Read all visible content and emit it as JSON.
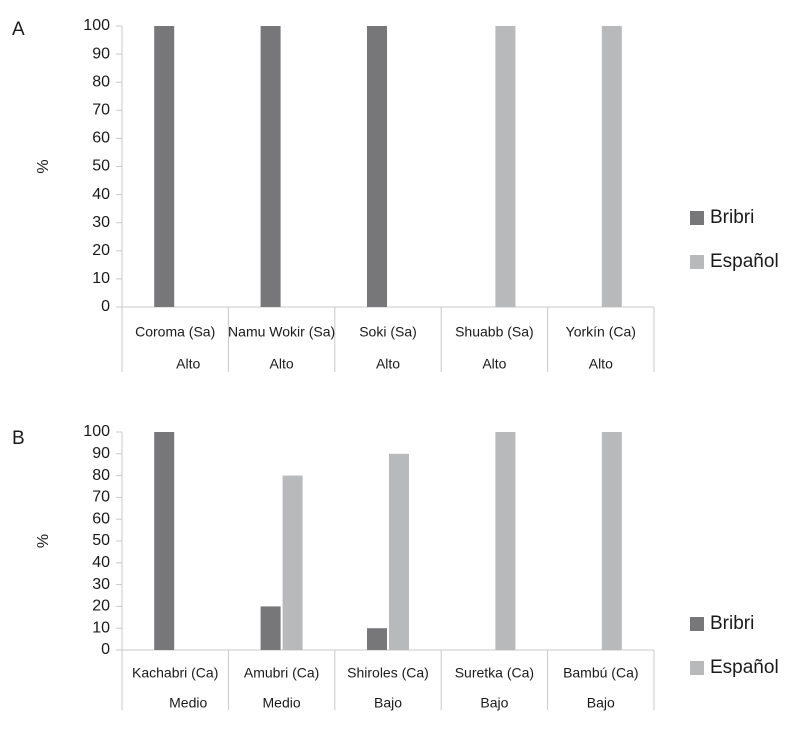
{
  "chart_data": [
    {
      "type": "bar",
      "panel_label": "A",
      "ylabel": "%",
      "ylim": [
        0,
        100
      ],
      "yticks": [
        "0",
        "10",
        "20",
        "30",
        "40",
        "50",
        "60",
        "70",
        "80",
        "90",
        "100"
      ],
      "categories": [
        "Coroma (Sa)",
        "Namu Wokir (Sa)",
        "Soki (Sa)",
        "Shuabb (Sa)",
        "Yorkín (Ca)"
      ],
      "groups": [
        "Alto",
        "Alto",
        "Alto",
        "Alto",
        "Alto"
      ],
      "series": [
        {
          "name": "Bribri",
          "color": "#77777a",
          "values": [
            100,
            100,
            100,
            0,
            0
          ]
        },
        {
          "name": "Español",
          "color": "#b8b9bb",
          "values": [
            0,
            0,
            0,
            100,
            100
          ]
        }
      ],
      "legend": "right"
    },
    {
      "type": "bar",
      "panel_label": "B",
      "ylabel": "%",
      "ylim": [
        0,
        100
      ],
      "yticks": [
        "0",
        "10",
        "20",
        "30",
        "40",
        "50",
        "60",
        "70",
        "80",
        "90",
        "100"
      ],
      "categories": [
        "Kachabri (Ca)",
        "Amubri (Ca)",
        "Shiroles (Ca)",
        "Suretka (Ca)",
        "Bambú (Ca)"
      ],
      "groups": [
        "Medio",
        "Medio",
        "Bajo",
        "Bajo",
        "Bajo"
      ],
      "series": [
        {
          "name": "Bribri",
          "color": "#77777a",
          "values": [
            100,
            20,
            10,
            0,
            0
          ]
        },
        {
          "name": "Español",
          "color": "#b8b9bb",
          "values": [
            0,
            80,
            90,
            100,
            100
          ]
        }
      ],
      "legend": "right"
    }
  ]
}
